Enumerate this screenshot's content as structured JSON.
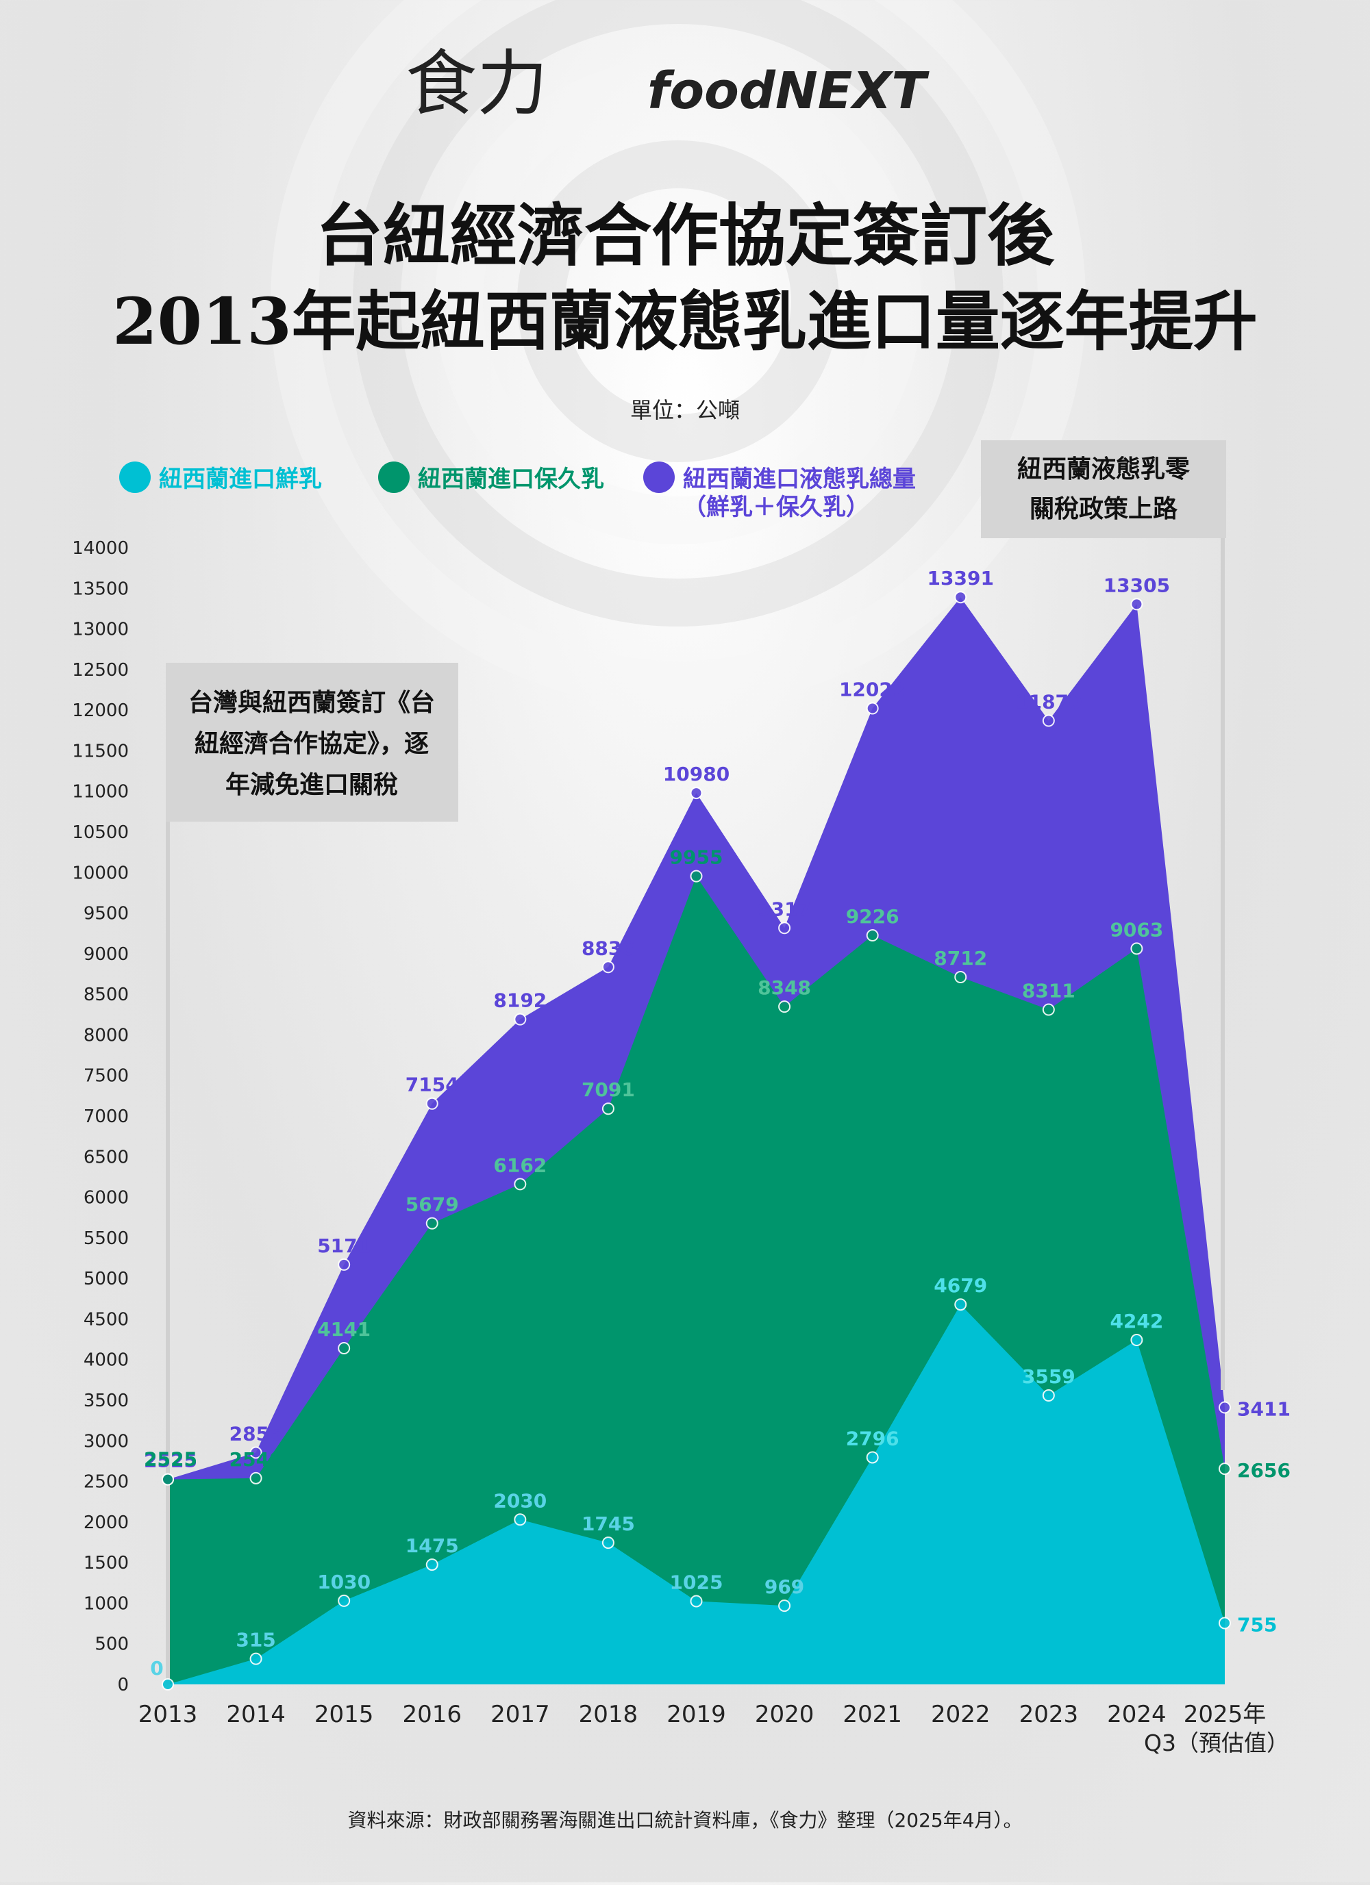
{
  "brand": {
    "zh": "食力",
    "en": "foodNEXT"
  },
  "colors": {
    "fresh": "#00c0d3",
    "long_life": "#00956c",
    "total": "#5b45d8",
    "annotation_bg": "#d5d5d5",
    "text_dark": "#1a1a1a"
  },
  "annotations": {
    "agreement": [
      "台灣與紐西蘭簽訂《台",
      "紐經濟合作協定》，逐",
      "年減免進口關稅"
    ],
    "zero_tariff": [
      "紐西蘭液態乳零",
      "關稅政策上路"
    ]
  },
  "source": "資料來源：財政部關務署海關進出口統計資料庫，《食力》整理（2025年4月）。",
  "chart_data": {
    "type": "area",
    "title": [
      "台紐經濟合作協定簽訂後",
      "2013年起紐西蘭液態乳進口量逐年提升"
    ],
    "unit": "單位：公噸",
    "categories": [
      "2013",
      "2014",
      "2015",
      "2016",
      "2017",
      "2018",
      "2019",
      "2020",
      "2021",
      "2022",
      "2023",
      "2024",
      "2025年"
    ],
    "category_sublabel": "Q3（預估值）",
    "ylim": [
      0,
      14000
    ],
    "ytick_step": 500,
    "series": [
      {
        "key": "total",
        "name": "紐西蘭進口液態乳總量",
        "name_line2": "（鮮乳＋保久乳）",
        "color": "#5b45d8",
        "values": [
          2525,
          2855,
          5171,
          7154,
          8192,
          8836,
          10980,
          9317,
          12022,
          13391,
          11870,
          13305,
          3411
        ]
      },
      {
        "key": "long_life",
        "name": "紐西蘭進口保久乳",
        "color": "#00956c",
        "values": [
          2525,
          2540,
          4141,
          5679,
          6162,
          7091,
          9955,
          8348,
          9226,
          8712,
          8311,
          9063,
          2656
        ]
      },
      {
        "key": "fresh",
        "name": "紐西蘭進口鮮乳",
        "color": "#00c0d3",
        "values": [
          0,
          315,
          1030,
          1475,
          2030,
          1745,
          1025,
          969,
          2796,
          4679,
          3559,
          4242,
          755
        ]
      }
    ],
    "legend_position": "top"
  }
}
